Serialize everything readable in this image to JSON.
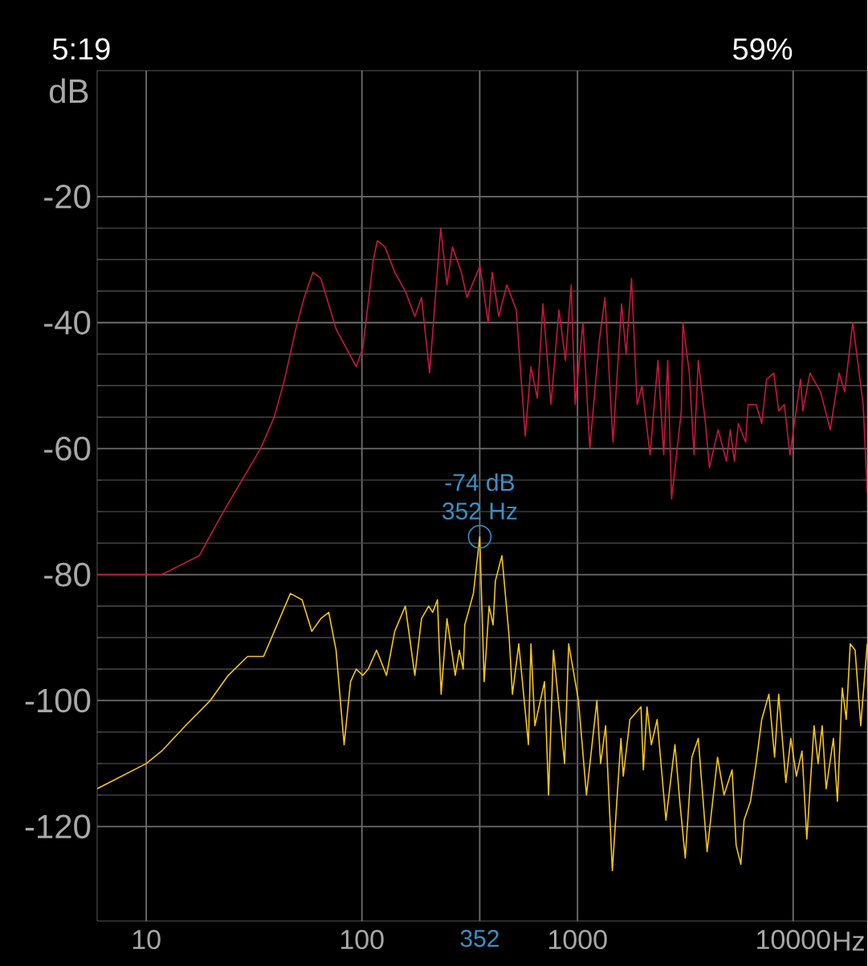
{
  "chart_data": {
    "type": "line",
    "xlabel": "Hz",
    "ylabel": "dB",
    "log": "x",
    "grid": true,
    "xlim": [
      5.92,
      22050
    ],
    "ylim": [
      -135,
      0
    ],
    "xticks": [
      10,
      100,
      {
        "value": 352,
        "label": "352"
      },
      1000,
      10000
    ],
    "yticks": [
      -120,
      -100,
      -80,
      -60,
      -40,
      -20
    ],
    "series": [
      {
        "color": "#c8173c",
        "x": [
          5.92,
          10,
          11.8,
          17.6,
          22.8,
          33.9,
          39.2,
          43.8,
          49.4,
          54,
          59.3,
          64.5,
          75.9,
          94.1,
          101,
          113,
          118,
          128,
          142,
          159,
          176,
          189,
          206,
          232,
          248,
          263,
          289,
          307,
          353,
          385,
          402,
          431,
          470,
          520,
          572,
          608,
          651,
          691,
          753,
          820,
          879,
          934,
          975,
          1060,
          1140,
          1260,
          1340,
          1460,
          1600,
          1680,
          1780,
          1890,
          1990,
          2170,
          2360,
          2510,
          2620,
          2730,
          3030,
          3080,
          3300,
          3470,
          3630,
          3920,
          4090,
          4490,
          4900,
          5110,
          5340,
          5570,
          6020,
          6180,
          6730,
          7150,
          7530,
          8130,
          8570,
          9100,
          9660,
          10820,
          11090,
          11970,
          13400,
          14860,
          16330,
          17340,
          18900,
          20060,
          21120,
          22050
        ],
        "values": [
          -80,
          -80,
          -80,
          -77,
          -70,
          -60,
          -55,
          -49,
          -41,
          -36,
          -32,
          -33,
          -41,
          -47,
          -44,
          -30,
          -27,
          -28,
          -32,
          -35,
          -39,
          -36,
          -48,
          -25,
          -34,
          -28,
          -32,
          -36,
          -31,
          -40,
          -32,
          -39,
          -34,
          -38,
          -58,
          -47,
          -52,
          -37,
          -53,
          -38,
          -46,
          -34,
          -53,
          -40,
          -60,
          -43,
          -36,
          -59,
          -37,
          -45,
          -33,
          -53,
          -50,
          -61,
          -46,
          -61,
          -46,
          -68,
          -54,
          -40,
          -48,
          -61,
          -46,
          -56,
          -63,
          -57,
          -62,
          -57,
          -62,
          -56,
          -59,
          -53,
          -53,
          -56,
          -49,
          -48,
          -54,
          -53,
          -61,
          -49,
          -54,
          -48,
          -51,
          -57,
          -48,
          -51,
          -40,
          -47,
          -53,
          -67
        ]
      },
      {
        "color": "#f5c518",
        "x": [
          5.92,
          10,
          11.8,
          15.2,
          19.8,
          24,
          29.5,
          35,
          46.6,
          52.8,
          58.6,
          64.5,
          70.2,
          75.9,
          82.7,
          88.6,
          94.1,
          101,
          107,
          117,
          130,
          142,
          159,
          176,
          189,
          204,
          213,
          224,
          233,
          248,
          271,
          283,
          295,
          300,
          329,
          352,
          369,
          389,
          406,
          416,
          446,
          482,
          499,
          534,
          592,
          608,
          634,
          703,
          734,
          773,
          871,
          910,
          1010,
          1100,
          1230,
          1280,
          1350,
          1450,
          1590,
          1630,
          1750,
          1970,
          2020,
          2100,
          2200,
          2340,
          2570,
          2830,
          2980,
          3160,
          3390,
          3630,
          3990,
          4460,
          4780,
          5210,
          5440,
          5720,
          5920,
          6340,
          6730,
          7150,
          7720,
          8200,
          8570,
          9250,
          9750,
          10350,
          10990,
          11570,
          12500,
          13050,
          13630,
          14220,
          15370,
          16040,
          16890,
          17630,
          18400,
          19380,
          20570,
          22050
        ],
        "values": [
          -114,
          -110,
          -108,
          -104,
          -100,
          -96,
          -93,
          -93,
          -83,
          -84,
          -89,
          -87,
          -86,
          -92,
          -107,
          -97,
          -95,
          -96,
          -95,
          -92,
          -96,
          -89,
          -85,
          -96,
          -87,
          -85,
          -86,
          -84,
          -99,
          -87,
          -96,
          -92,
          -95,
          -88,
          -83,
          -74,
          -97,
          -85,
          -88,
          -81,
          -77,
          -90,
          -99,
          -91,
          -107,
          -91,
          -104,
          -97,
          -115,
          -92,
          -110,
          -91,
          -100,
          -115,
          -100,
          -110,
          -104,
          -127,
          -106,
          -112,
          -103,
          -101,
          -111,
          -101,
          -107,
          -103,
          -119,
          -107,
          -116,
          -125,
          -109,
          -106,
          -124,
          -109,
          -115,
          -111,
          -123,
          -126,
          -119,
          -116,
          -110,
          -103,
          -99,
          -109,
          -99,
          -113,
          -106,
          -112,
          -108,
          -122,
          -104,
          -110,
          -104,
          -114,
          -106,
          -116,
          -98,
          -103,
          -91,
          -92,
          -104,
          -91
        ]
      }
    ],
    "annotations": [
      "5:19",
      "59%",
      {
        "text": "-74 dB",
        "x": 352,
        "y": -74
      },
      {
        "text": "352 Hz",
        "x": 352,
        "y": -74
      }
    ]
  }
}
